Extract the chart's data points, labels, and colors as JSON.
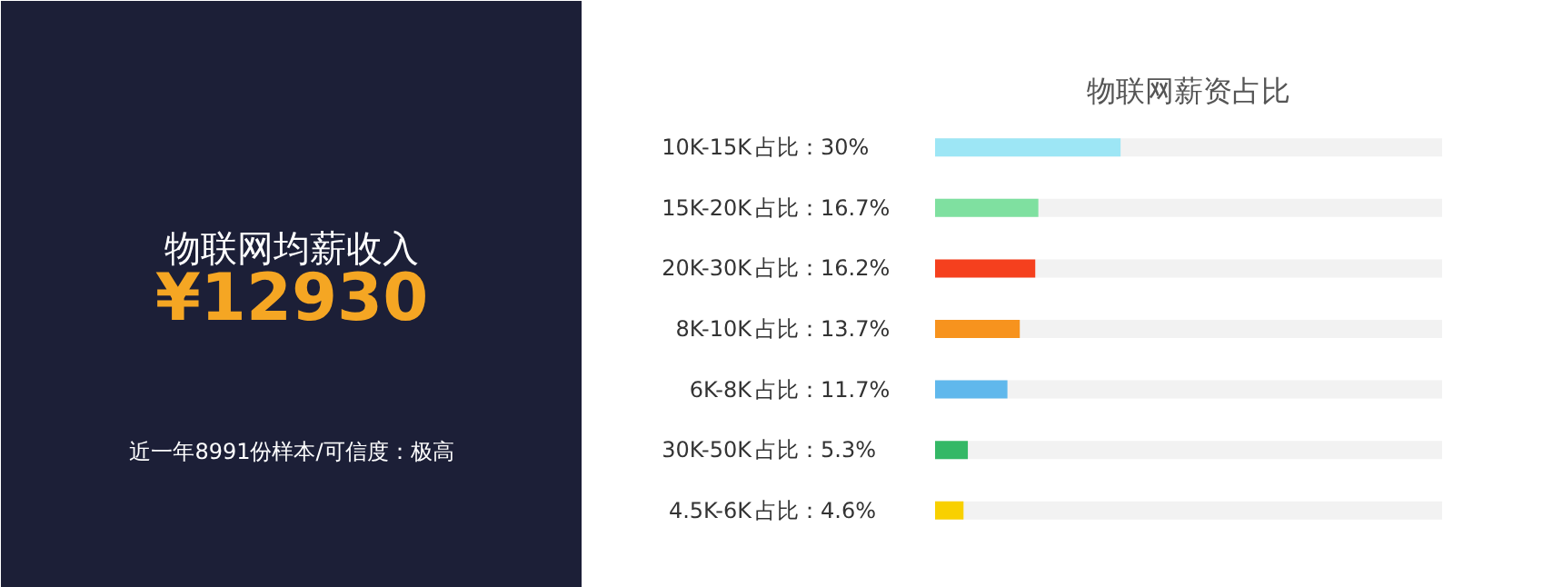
{
  "chart_data": [
    {
      "type": "other",
      "title": "物联网均薪收入",
      "annotations": [
        "¥12930",
        "近一年8991份样本/可信度：极高"
      ]
    },
    {
      "type": "bar",
      "orientation": "horizontal",
      "title": "物联网薪资占比",
      "tick_labels": "y",
      "grid": false,
      "xlim": [
        0,
        82
      ],
      "categories": [
        "10K-15K",
        "15K-20K",
        "20K-30K",
        "8K-10K",
        "6K-8K",
        "30K-50K",
        "4.5K-6K"
      ],
      "values": [
        30,
        16.7,
        16.2,
        13.7,
        11.7,
        5.3,
        4.6
      ],
      "value_labels": [
        "占比：30%",
        "占比：16.7%",
        "占比：16.2%",
        "占比：13.7%",
        "占比：11.7%",
        "占比：5.3%",
        "占比：4.6%"
      ],
      "colors": [
        "#9de6f5",
        "#7fe0a0",
        "#f5401e",
        "#f7931e",
        "#60b8ec",
        "#34b866",
        "#f8d000"
      ]
    }
  ]
}
